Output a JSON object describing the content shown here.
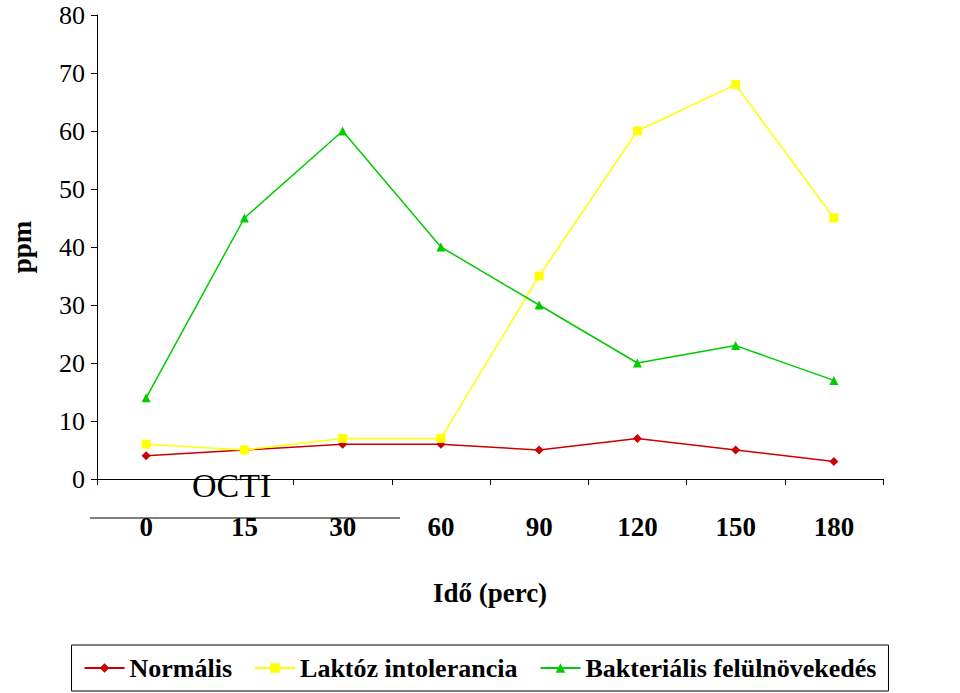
{
  "chart_data": {
    "type": "line",
    "x_label": "Idő (perc)",
    "y_label": "ppm",
    "annotations": [
      "OCTI"
    ],
    "categories": [
      0,
      15,
      30,
      60,
      90,
      120,
      150,
      180
    ],
    "series": [
      {
        "name": "Normális",
        "color": "#cc0000",
        "marker": "diamond",
        "values": [
          4,
          5,
          6,
          6,
          5,
          7,
          5,
          3
        ]
      },
      {
        "name": "Laktóz intolerancia",
        "color": "#ffff00",
        "marker": "square",
        "values": [
          6,
          5,
          7,
          7,
          35,
          60,
          68,
          45
        ]
      },
      {
        "name": "Bakteriális felülnövekedés",
        "color": "#00cc00",
        "marker": "triangle",
        "values": [
          14,
          45,
          60,
          40,
          30,
          20,
          23,
          17
        ]
      }
    ],
    "ylim": [
      0,
      80
    ],
    "yticks": [
      0,
      10,
      20,
      30,
      40,
      50,
      60,
      70,
      80
    ],
    "grid": false,
    "legend": "bottom"
  }
}
